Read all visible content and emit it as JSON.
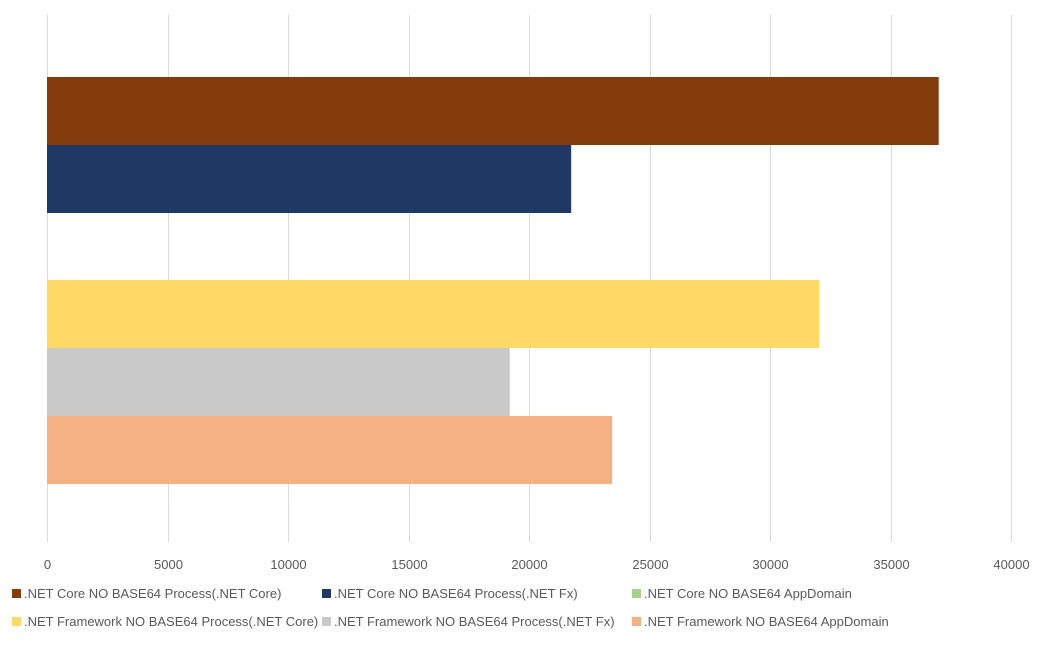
{
  "chart_data": {
    "type": "bar",
    "orientation": "horizontal",
    "title": "",
    "xlabel": "",
    "ylabel": "",
    "xlim": [
      0,
      40000
    ],
    "x_ticks": [
      "0",
      "5000",
      "10000",
      "15000",
      "20000",
      "25000",
      "30000",
      "35000",
      "40000"
    ],
    "grid": true,
    "legend_position": "bottom",
    "groups": [
      {
        "name": "",
        "series": [
          {
            "name": ".NET Core NO BASE64 Process(.NET Core)",
            "value": 37000,
            "color": "#843C0C"
          },
          {
            "name": ".NET Core NO BASE64 Process(.NET Fx)",
            "value": 21750,
            "color": "#1F3864"
          },
          {
            "name": ".NET Core NO BASE64 AppDomain",
            "value": null,
            "color": "#A9D18E"
          }
        ]
      },
      {
        "name": "",
        "series": [
          {
            "name": ".NET Framework NO BASE64 Process(.NET Core)",
            "value": 32050,
            "color": "#FFD966"
          },
          {
            "name": ".NET Framework NO BASE64 Process(.NET Fx)",
            "value": 19200,
            "color": "#C9C9C9"
          },
          {
            "name": ".NET Framework NO BASE64 AppDomain",
            "value": 23450,
            "color": "#F4B183"
          }
        ]
      }
    ],
    "legend": [
      {
        "label": ".NET Core NO BASE64 Process(.NET Core)",
        "color": "#843C0C"
      },
      {
        "label": ".NET Core NO BASE64 Process(.NET Fx)",
        "color": "#1F3864"
      },
      {
        "label": ".NET Core NO BASE64 AppDomain",
        "color": "#A9D18E"
      },
      {
        "label": ".NET Framework NO BASE64 Process(.NET Core)",
        "color": "#FFD966"
      },
      {
        "label": ".NET Framework NO BASE64 Process(.NET Fx)",
        "color": "#C9C9C9"
      },
      {
        "label": ".NET Framework NO BASE64 AppDomain",
        "color": "#F4B183"
      }
    ]
  }
}
